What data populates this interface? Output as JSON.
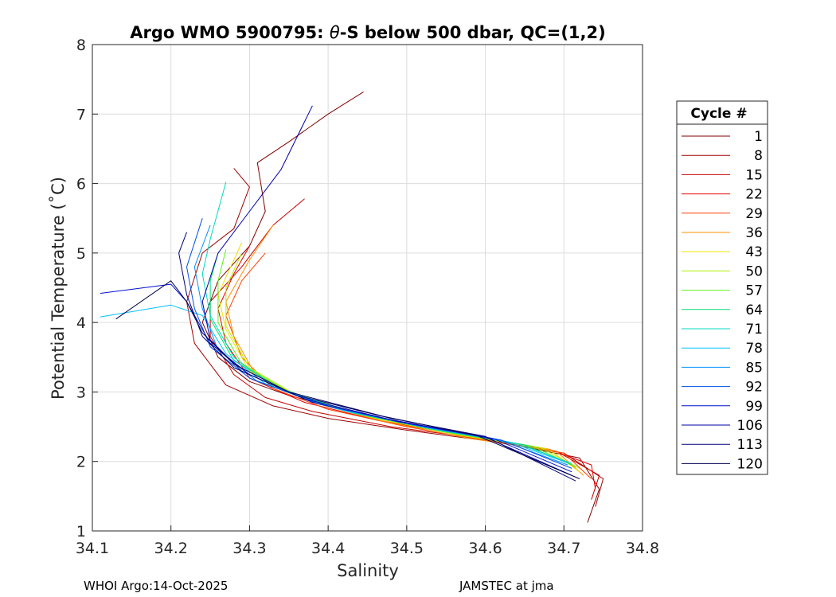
{
  "chart_data": {
    "type": "line",
    "title": "Argo WMO 5900795: θ-S below 500 dbar,  QC=(1,2)",
    "title_prefix": "Argo WMO 5900795: ",
    "title_theta": "θ",
    "title_suffix": "-S below 500 dbar,  QC=(1,2)",
    "xlabel": "Salinity",
    "ylabel": "Potential Temperature (˚C)",
    "xlim": [
      34.1,
      34.8
    ],
    "ylim": [
      1,
      8
    ],
    "xticks": [
      34.1,
      34.2,
      34.3,
      34.4,
      34.5,
      34.6,
      34.7,
      34.8
    ],
    "xtick_labels": [
      "34.1",
      "34.2",
      "34.3",
      "34.4",
      "34.5",
      "34.6",
      "34.7",
      "34.8"
    ],
    "yticks": [
      1,
      2,
      3,
      4,
      5,
      6,
      7,
      8
    ],
    "ytick_labels": [
      "1",
      "2",
      "3",
      "4",
      "5",
      "6",
      "7",
      "8"
    ],
    "grid": true,
    "legend_title": "Cycle #",
    "legend_position": "right",
    "series": [
      {
        "name": "1",
        "color": "#800000",
        "points": [
          [
            34.73,
            1.12
          ],
          [
            34.745,
            1.6
          ],
          [
            34.72,
            2.05
          ],
          [
            34.6,
            2.32
          ],
          [
            34.5,
            2.52
          ],
          [
            34.42,
            2.75
          ],
          [
            34.35,
            2.95
          ],
          [
            34.3,
            3.15
          ],
          [
            34.26,
            3.5
          ],
          [
            34.24,
            4.0
          ],
          [
            34.26,
            4.6
          ],
          [
            34.3,
            5.1
          ],
          [
            34.32,
            5.6
          ],
          [
            34.31,
            6.3
          ],
          [
            34.35,
            6.6
          ],
          [
            34.4,
            7.0
          ],
          [
            34.445,
            7.32
          ]
        ]
      },
      {
        "name": "8",
        "color": "#a00000",
        "points": [
          [
            34.74,
            1.35
          ],
          [
            34.75,
            1.75
          ],
          [
            34.7,
            2.12
          ],
          [
            34.6,
            2.3
          ],
          [
            34.5,
            2.45
          ],
          [
            34.4,
            2.62
          ],
          [
            34.33,
            2.8
          ],
          [
            34.27,
            3.1
          ],
          [
            34.23,
            3.7
          ],
          [
            34.22,
            4.3
          ],
          [
            34.24,
            5.0
          ],
          [
            34.28,
            5.35
          ],
          [
            34.3,
            5.95
          ],
          [
            34.28,
            6.22
          ]
        ]
      },
      {
        "name": "15",
        "color": "#c80000",
        "points": [
          [
            34.735,
            1.45
          ],
          [
            34.745,
            1.8
          ],
          [
            34.69,
            2.15
          ],
          [
            34.58,
            2.35
          ],
          [
            34.48,
            2.5
          ],
          [
            34.38,
            2.72
          ],
          [
            34.32,
            2.92
          ],
          [
            34.28,
            3.25
          ],
          [
            34.25,
            3.8
          ],
          [
            34.25,
            4.3
          ],
          [
            34.29,
            4.8
          ],
          [
            34.33,
            5.4
          ],
          [
            34.37,
            5.78
          ]
        ]
      },
      {
        "name": "22",
        "color": "#e60000",
        "points": [
          [
            34.74,
            1.6
          ],
          [
            34.735,
            1.95
          ],
          [
            34.68,
            2.18
          ],
          [
            34.57,
            2.38
          ],
          [
            34.46,
            2.6
          ],
          [
            34.37,
            2.85
          ],
          [
            34.3,
            3.2
          ],
          [
            34.27,
            3.7
          ],
          [
            34.26,
            4.2
          ],
          [
            34.28,
            4.7
          ],
          [
            34.3,
            5.1
          ]
        ]
      },
      {
        "name": "29",
        "color": "#ff4000",
        "points": [
          [
            34.735,
            1.75
          ],
          [
            34.7,
            2.12
          ],
          [
            34.6,
            2.3
          ],
          [
            34.5,
            2.5
          ],
          [
            34.4,
            2.75
          ],
          [
            34.33,
            3.05
          ],
          [
            34.29,
            3.5
          ],
          [
            34.27,
            4.1
          ],
          [
            34.29,
            4.6
          ],
          [
            34.32,
            5.0
          ]
        ]
      },
      {
        "name": "36",
        "color": "#ff9000",
        "points": [
          [
            34.725,
            1.8
          ],
          [
            34.69,
            2.15
          ],
          [
            34.58,
            2.33
          ],
          [
            34.47,
            2.58
          ],
          [
            34.38,
            2.85
          ],
          [
            34.31,
            3.2
          ],
          [
            34.28,
            3.8
          ],
          [
            34.27,
            4.3
          ],
          [
            34.3,
            4.9
          ],
          [
            34.33,
            5.4
          ]
        ]
      },
      {
        "name": "43",
        "color": "#f0e000",
        "points": [
          [
            34.72,
            1.85
          ],
          [
            34.68,
            2.18
          ],
          [
            34.57,
            2.37
          ],
          [
            34.46,
            2.62
          ],
          [
            34.37,
            2.9
          ],
          [
            34.3,
            3.3
          ],
          [
            34.27,
            3.9
          ],
          [
            34.26,
            4.4
          ],
          [
            34.28,
            4.9
          ],
          [
            34.29,
            5.15
          ]
        ]
      },
      {
        "name": "50",
        "color": "#b0f000",
        "points": [
          [
            34.72,
            1.9
          ],
          [
            34.67,
            2.2
          ],
          [
            34.56,
            2.4
          ],
          [
            34.45,
            2.65
          ],
          [
            34.36,
            2.95
          ],
          [
            34.3,
            3.35
          ],
          [
            34.27,
            3.95
          ],
          [
            34.27,
            4.5
          ],
          [
            34.29,
            5.0
          ]
        ]
      },
      {
        "name": "57",
        "color": "#60f020",
        "points": [
          [
            34.715,
            1.92
          ],
          [
            34.66,
            2.22
          ],
          [
            34.55,
            2.42
          ],
          [
            34.44,
            2.68
          ],
          [
            34.35,
            3.0
          ],
          [
            34.29,
            3.4
          ],
          [
            34.26,
            4.0
          ],
          [
            34.26,
            4.6
          ],
          [
            34.27,
            5.05
          ]
        ]
      },
      {
        "name": "64",
        "color": "#00e070",
        "points": [
          [
            34.71,
            1.95
          ],
          [
            34.65,
            2.24
          ],
          [
            34.54,
            2.45
          ],
          [
            34.43,
            2.7
          ],
          [
            34.34,
            3.05
          ],
          [
            34.28,
            3.45
          ],
          [
            34.25,
            4.05
          ],
          [
            34.25,
            4.6
          ],
          [
            34.26,
            5.0
          ]
        ]
      },
      {
        "name": "71",
        "color": "#00d8c0",
        "points": [
          [
            34.71,
            1.97
          ],
          [
            34.64,
            2.26
          ],
          [
            34.53,
            2.47
          ],
          [
            34.42,
            2.73
          ],
          [
            34.33,
            3.08
          ],
          [
            34.28,
            3.5
          ],
          [
            34.25,
            4.1
          ],
          [
            34.24,
            4.7
          ],
          [
            34.25,
            5.2
          ],
          [
            34.27,
            6.02
          ]
        ]
      },
      {
        "name": "78",
        "color": "#00c0ff",
        "points": [
          [
            34.705,
            1.98
          ],
          [
            34.63,
            2.28
          ],
          [
            34.52,
            2.5
          ],
          [
            34.41,
            2.76
          ],
          [
            34.32,
            3.12
          ],
          [
            34.27,
            3.55
          ],
          [
            34.24,
            4.1
          ],
          [
            34.2,
            4.25
          ],
          [
            34.11,
            4.08
          ]
        ]
      },
      {
        "name": "85",
        "color": "#0090ff",
        "points": [
          [
            34.705,
            1.95
          ],
          [
            34.62,
            2.3
          ],
          [
            34.51,
            2.52
          ],
          [
            34.4,
            2.8
          ],
          [
            34.31,
            3.15
          ],
          [
            34.26,
            3.6
          ],
          [
            34.24,
            4.2
          ],
          [
            34.23,
            4.8
          ],
          [
            34.25,
            5.4
          ]
        ]
      },
      {
        "name": "92",
        "color": "#0050e8",
        "points": [
          [
            34.71,
            1.9
          ],
          [
            34.62,
            2.31
          ],
          [
            34.5,
            2.55
          ],
          [
            34.39,
            2.82
          ],
          [
            34.3,
            3.2
          ],
          [
            34.25,
            3.65
          ],
          [
            34.23,
            4.2
          ],
          [
            34.22,
            4.8
          ],
          [
            34.24,
            5.5
          ]
        ]
      },
      {
        "name": "99",
        "color": "#0010d0",
        "points": [
          [
            34.71,
            1.85
          ],
          [
            34.61,
            2.33
          ],
          [
            34.49,
            2.57
          ],
          [
            34.38,
            2.85
          ],
          [
            34.3,
            3.25
          ],
          [
            34.25,
            3.7
          ],
          [
            34.22,
            4.3
          ],
          [
            34.2,
            4.55
          ],
          [
            34.11,
            4.42
          ]
        ]
      },
      {
        "name": "106",
        "color": "#0000a8",
        "points": [
          [
            34.71,
            1.8
          ],
          [
            34.6,
            2.35
          ],
          [
            34.48,
            2.6
          ],
          [
            34.37,
            2.9
          ],
          [
            34.29,
            3.3
          ],
          [
            34.25,
            3.75
          ],
          [
            34.24,
            4.3
          ],
          [
            34.26,
            5.0
          ],
          [
            34.3,
            5.6
          ],
          [
            34.34,
            6.2
          ],
          [
            34.38,
            7.12
          ]
        ]
      },
      {
        "name": "113",
        "color": "#00007a",
        "points": [
          [
            34.715,
            1.72
          ],
          [
            34.6,
            2.36
          ],
          [
            34.48,
            2.62
          ],
          [
            34.36,
            2.95
          ],
          [
            34.28,
            3.35
          ],
          [
            34.24,
            3.8
          ],
          [
            34.22,
            4.4
          ],
          [
            34.21,
            5.0
          ],
          [
            34.22,
            5.3
          ]
        ]
      },
      {
        "name": "120",
        "color": "#000050",
        "points": [
          [
            34.72,
            1.75
          ],
          [
            34.59,
            2.37
          ],
          [
            34.47,
            2.65
          ],
          [
            34.35,
            3.0
          ],
          [
            34.28,
            3.4
          ],
          [
            34.24,
            3.85
          ],
          [
            34.22,
            4.3
          ],
          [
            34.2,
            4.6
          ],
          [
            34.13,
            4.05
          ]
        ]
      }
    ]
  },
  "footer": {
    "left": "WHOI Argo:14-Oct-2025",
    "right": "JAMSTEC at jma"
  }
}
